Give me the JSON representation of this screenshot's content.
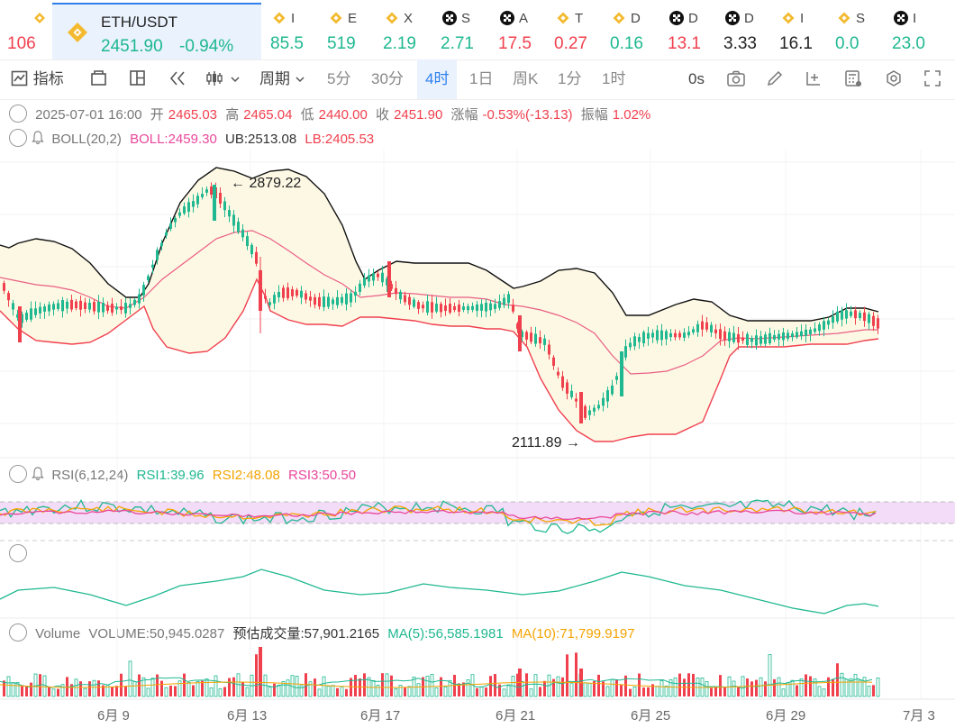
{
  "tickers_left": {
    "price": "106",
    "color": "down"
  },
  "active_ticker": {
    "symbol": "ETH/USDT",
    "price": "2451.90",
    "change": "-0.94%"
  },
  "tickers": [
    {
      "icon": "binance",
      "name": "I",
      "price": "85.5",
      "color": "up"
    },
    {
      "icon": "binance",
      "name": "E",
      "price": "519",
      "color": "up"
    },
    {
      "icon": "binance",
      "name": "X",
      "price": "2.19",
      "color": "up"
    },
    {
      "icon": "okx",
      "name": "S",
      "price": "2.71",
      "color": "up"
    },
    {
      "icon": "okx",
      "name": "A",
      "price": "17.5",
      "color": "down"
    },
    {
      "icon": "binance",
      "name": "T",
      "price": "0.27",
      "color": "down"
    },
    {
      "icon": "binance",
      "name": "D",
      "price": "0.16",
      "color": "up"
    },
    {
      "icon": "okx",
      "name": "D",
      "price": "13.1",
      "color": "down"
    },
    {
      "icon": "okx",
      "name": "D",
      "price": "3.33",
      "color": "neu"
    },
    {
      "icon": "binance",
      "name": "I",
      "price": "16.1",
      "color": "neu"
    },
    {
      "icon": "binance",
      "name": "S",
      "price": "0.0",
      "color": "up"
    },
    {
      "icon": "okx",
      "name": "I",
      "price": "23.0",
      "color": "up"
    }
  ],
  "toolbar": {
    "indicators": "指标",
    "period": "周期",
    "intervals": [
      "5分",
      "30分",
      "4时",
      "1日",
      "周K",
      "1分",
      "1时"
    ],
    "selected_interval": "4时",
    "latency": "0s"
  },
  "ohlc": {
    "datetime": "2025-07-01 16:00",
    "open_label": "开",
    "open": "2465.03",
    "high_label": "高",
    "high": "2465.04",
    "low_label": "低",
    "low": "2440.00",
    "close_label": "收",
    "close": "2451.90",
    "change_label": "涨幅",
    "change": "-0.53%(-13.13)",
    "amp_label": "振幅",
    "amp": "1.02%"
  },
  "boll": {
    "name": "BOLL(20,2)",
    "boll": "BOLL:2459.30",
    "ub": "UB:2513.08",
    "lb": "LB:2405.53"
  },
  "rsi": {
    "name": "RSI(6,12,24)",
    "rsi1": "RSI1:39.96",
    "rsi2": "RSI2:48.08",
    "rsi3": "RSI3:50.50"
  },
  "volume": {
    "name": "Volume",
    "volume": "VOLUME:50,945.0287",
    "est": "预估成交量:57,901.2165",
    "ma5": "MA(5):56,585.1981",
    "ma10": "MA(10):71,799.9197"
  },
  "annotations": {
    "high": "2879.22",
    "low": "2111.89"
  },
  "x_axis": [
    "6月 9",
    "6月 13",
    "6月 17",
    "6月 21",
    "6月 25",
    "6月 29",
    "7月 3"
  ],
  "colors": {
    "up": "#1fb890",
    "down": "#f0404e",
    "accent": "#2f80ed",
    "band_fill": "#fdf8e4",
    "mid": "#e95f84",
    "rsi1": "#1fb890",
    "rsi2": "#f5a300",
    "rsi3": "#e9469b"
  }
}
